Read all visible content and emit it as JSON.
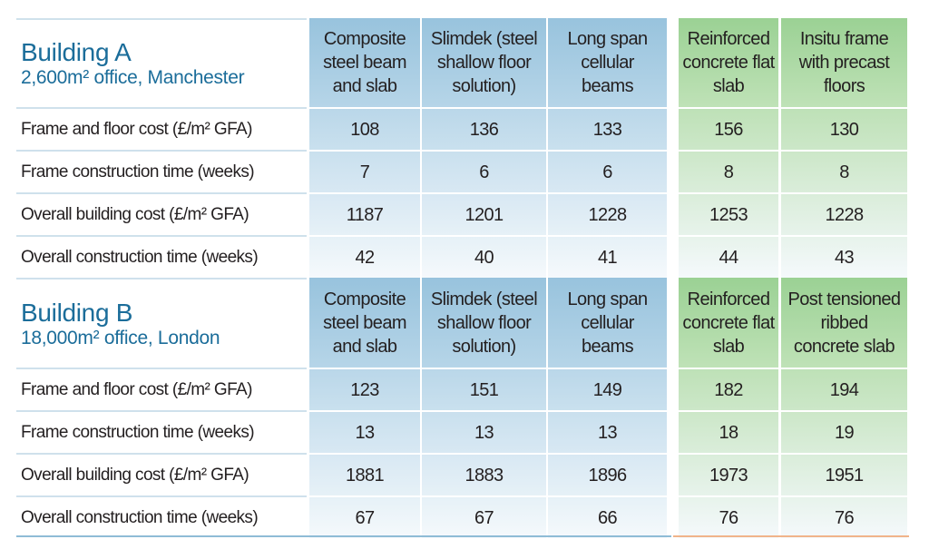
{
  "colors": {
    "title": "#1b6d9a",
    "steel_header": "#a4cbe1",
    "concrete_header": "#a6d6a0",
    "steel_row": "#c9e0ee",
    "concrete_row": "#cfe8c9",
    "bottom_steel": "#8fbcd6",
    "bottom_concrete": "#f0b48a"
  },
  "sections": [
    {
      "title": "Building A",
      "subtitle": "2,600m² office, Manchester",
      "columns": [
        "Composite steel beam and slab",
        "Slimdek (steel shallow floor solution)",
        "Long span cellular beams",
        "Reinforced concrete flat slab",
        "Insitu frame with precast floors"
      ],
      "column_lines": [
        [
          "Composite",
          "steel beam",
          "and slab"
        ],
        [
          "Slimdek (steel",
          "shallow floor",
          "solution)"
        ],
        [
          "Long span",
          "cellular",
          "beams"
        ],
        [
          "Reinforced",
          "concrete flat",
          "slab"
        ],
        [
          "Insitu frame",
          "with precast",
          "floors"
        ]
      ],
      "rows": [
        {
          "label": "Frame and floor cost (£/m² GFA)",
          "values": [
            "108",
            "136",
            "133",
            "156",
            "130"
          ]
        },
        {
          "label": "Frame construction time (weeks)",
          "values": [
            "7",
            "6",
            "6",
            "8",
            "8"
          ]
        },
        {
          "label": "Overall building cost (£/m² GFA)",
          "values": [
            "1187",
            "1201",
            "1228",
            "1253",
            "1228"
          ]
        },
        {
          "label": "Overall construction time (weeks)",
          "values": [
            "42",
            "40",
            "41",
            "44",
            "43"
          ]
        }
      ]
    },
    {
      "title": "Building B",
      "subtitle": "18,000m² office, London",
      "columns": [
        "Composite steel beam and slab",
        "Slimdek (steel shallow floor solution)",
        "Long span cellular beams",
        "Reinforced concrete flat slab",
        "Post tensioned ribbed concrete slab"
      ],
      "column_lines": [
        [
          "Composite",
          "steel beam",
          "and slab"
        ],
        [
          "Slimdek (steel",
          "shallow floor",
          "solution)"
        ],
        [
          "Long span",
          "cellular",
          "beams"
        ],
        [
          "Reinforced",
          "concrete flat",
          "slab"
        ],
        [
          "Post tensioned",
          "ribbed",
          "concrete slab"
        ]
      ],
      "rows": [
        {
          "label": "Frame and floor cost (£/m² GFA)",
          "values": [
            "123",
            "151",
            "149",
            "182",
            "194"
          ]
        },
        {
          "label": "Frame construction time (weeks)",
          "values": [
            "13",
            "13",
            "13",
            "18",
            "19"
          ]
        },
        {
          "label": "Overall building cost (£/m² GFA)",
          "values": [
            "1881",
            "1883",
            "1896",
            "1973",
            "1951"
          ]
        },
        {
          "label": "Overall construction time (weeks)",
          "values": [
            "67",
            "67",
            "66",
            "76",
            "76"
          ]
        }
      ]
    }
  ]
}
